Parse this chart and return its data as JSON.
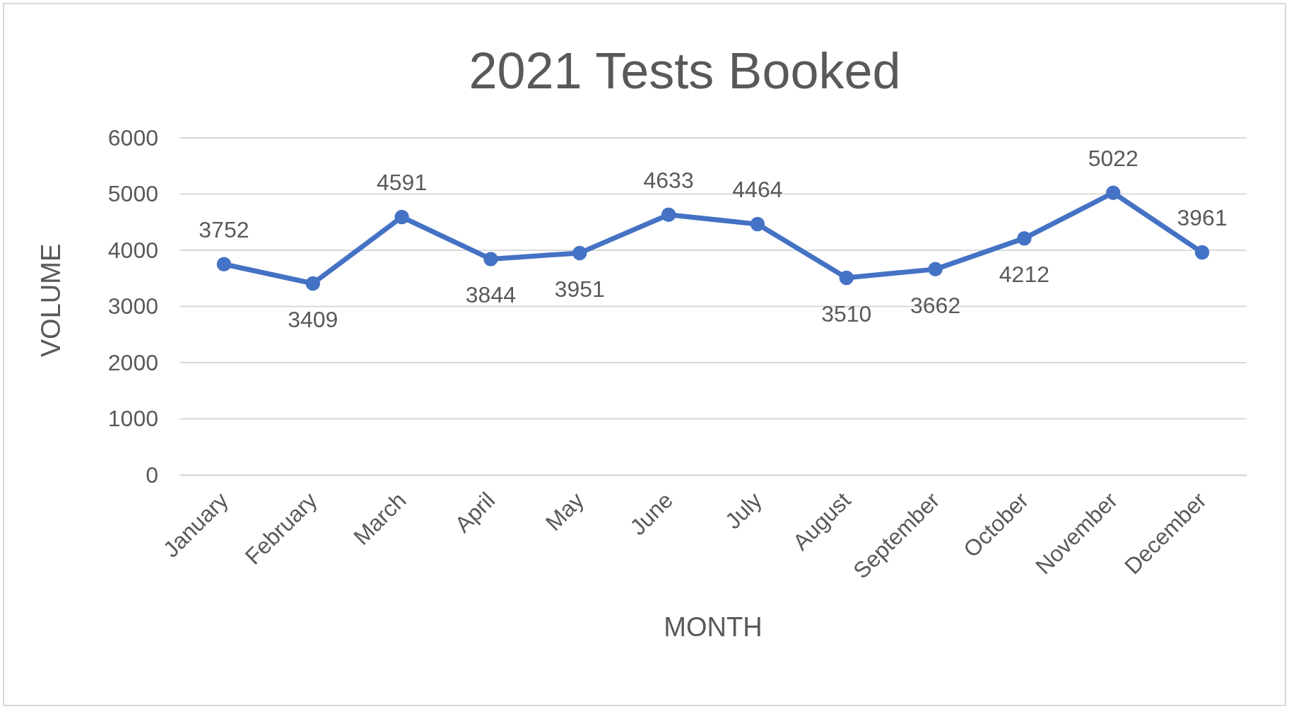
{
  "chart_data": {
    "type": "line",
    "title": "2021 Tests Booked",
    "xlabel": "MONTH",
    "ylabel": "VOLUME",
    "categories": [
      "January",
      "February",
      "March",
      "April",
      "May",
      "June",
      "July",
      "August",
      "September",
      "October",
      "November",
      "December"
    ],
    "series": [
      {
        "color": "#4472c4",
        "values": [
          3752,
          3409,
          4591,
          3844,
          3951,
          4633,
          4464,
          3510,
          3662,
          4212,
          5022,
          3961
        ]
      }
    ],
    "ylim": [
      0,
      6000
    ],
    "yticks": [
      0,
      1000,
      2000,
      3000,
      4000,
      5000,
      6000
    ],
    "grid": "y",
    "marker": "circle",
    "line_style": "solid",
    "data_labels": true
  }
}
